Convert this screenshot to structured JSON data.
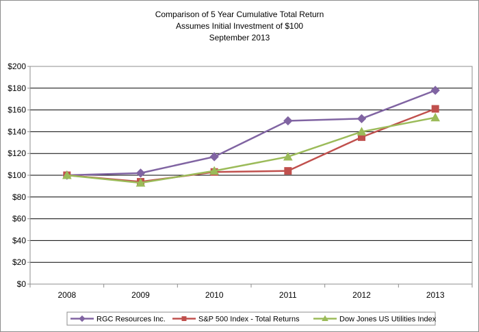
{
  "chart_data": {
    "type": "line",
    "title": [
      "Comparison of 5 Year Cumulative Total Return",
      "Assumes Initial Investment of $100",
      "September 2013"
    ],
    "categories": [
      "2008",
      "2009",
      "2010",
      "2011",
      "2012",
      "2013"
    ],
    "ylim": [
      0,
      200
    ],
    "yticks": [
      "$0",
      "$20",
      "$40",
      "$60",
      "$80",
      "$100",
      "$120",
      "$140",
      "$160",
      "$180",
      "$200"
    ],
    "grid": "horizontal",
    "legend_position": "bottom",
    "series": [
      {
        "name": "RGC Resources Inc.",
        "color": "#8064a2",
        "marker": "diamond",
        "values": [
          100,
          102,
          117,
          150,
          152,
          178
        ]
      },
      {
        "name": "S&P 500 Index - Total Returns",
        "color": "#c0504d",
        "marker": "square",
        "values": [
          100,
          94,
          103,
          104,
          135,
          161
        ]
      },
      {
        "name": "Dow Jones US Utilities Index",
        "color": "#9bbb59",
        "marker": "triangle",
        "values": [
          100,
          93,
          104,
          117,
          140,
          153
        ]
      }
    ]
  }
}
